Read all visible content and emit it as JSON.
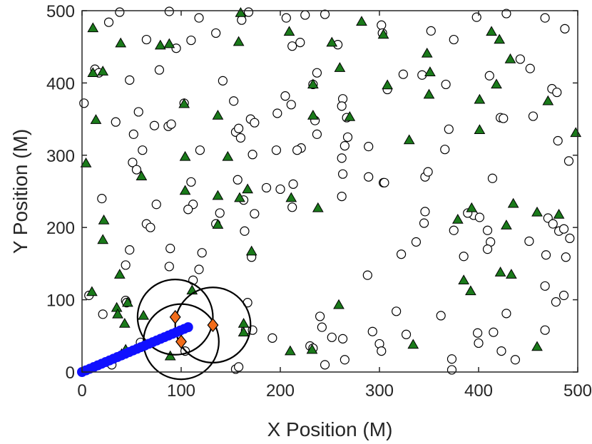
{
  "chart_data": {
    "type": "scatter",
    "xlabel": "X Position (M)",
    "ylabel": "Y Position (M)",
    "xlim": [
      0,
      500
    ],
    "ylim": [
      0,
      500
    ],
    "x_ticks": [
      0,
      100,
      200,
      300,
      400,
      500
    ],
    "y_ticks": [
      0,
      100,
      200,
      300,
      400,
      500
    ],
    "grid": false,
    "colors": {
      "triangle_fill": "#1a7a1a",
      "diamond_fill": "#f26c1a",
      "path_color": "#1010ff",
      "axis_color": "#262626"
    },
    "series": [
      {
        "marker": "open-circle",
        "points": [
          [
            38,
            498
          ],
          [
            88,
            499
          ],
          [
            168,
            498
          ],
          [
            206,
            490
          ],
          [
            225,
            494
          ],
          [
            245,
            495
          ],
          [
            302,
            480
          ],
          [
            303,
            469
          ],
          [
            352,
            472
          ],
          [
            375,
            460
          ],
          [
            398,
            491
          ],
          [
            428,
            496
          ],
          [
            467,
            490
          ],
          [
            487,
            475
          ],
          [
            27,
            484
          ],
          [
            65,
            460
          ],
          [
            95,
            448
          ],
          [
            110,
            459
          ],
          [
            118,
            490
          ],
          [
            135,
            469
          ],
          [
            161,
            487
          ],
          [
            212,
            451
          ],
          [
            220,
            456
          ],
          [
            258,
            453
          ],
          [
            13,
            419
          ],
          [
            17,
            414
          ],
          [
            48,
            404
          ],
          [
            78,
            418
          ],
          [
            142,
            403
          ],
          [
            237,
            414
          ],
          [
            233,
            398
          ],
          [
            308,
            391
          ],
          [
            324,
            412
          ],
          [
            343,
            411
          ],
          [
            367,
            398
          ],
          [
            411,
            410
          ],
          [
            442,
            433
          ],
          [
            452,
            420
          ],
          [
            474,
            392
          ],
          [
            479,
            387
          ],
          [
            2,
            372
          ],
          [
            57,
            360
          ],
          [
            103,
            372
          ],
          [
            153,
            375
          ],
          [
            205,
            382
          ],
          [
            211,
            370
          ],
          [
            197,
            358
          ],
          [
            263,
            378
          ],
          [
            262,
            368
          ],
          [
            267,
            352
          ],
          [
            170,
            350
          ],
          [
            174,
            345
          ],
          [
            235,
            348
          ],
          [
            422,
            352
          ],
          [
            425,
            351
          ],
          [
            455,
            354
          ],
          [
            34,
            346
          ],
          [
            52,
            329
          ],
          [
            73,
            341
          ],
          [
            87,
            340
          ],
          [
            90,
            343
          ],
          [
            155,
            332
          ],
          [
            158,
            337
          ],
          [
            160,
            324
          ],
          [
            237,
            329
          ],
          [
            268,
            325
          ],
          [
            370,
            336
          ],
          [
            480,
            320
          ],
          [
            61,
            307
          ],
          [
            119,
            307
          ],
          [
            172,
            301
          ],
          [
            196,
            307
          ],
          [
            221,
            310
          ],
          [
            217,
            307
          ],
          [
            262,
            296
          ],
          [
            265,
            313
          ],
          [
            289,
            312
          ],
          [
            366,
            308
          ],
          [
            51,
            290
          ],
          [
            55,
            280
          ],
          [
            20,
            240
          ],
          [
            75,
            232
          ],
          [
            112,
            232
          ],
          [
            110,
            263
          ],
          [
            186,
            255
          ],
          [
            200,
            253
          ],
          [
            213,
            260
          ],
          [
            263,
            274
          ],
          [
            262,
            243
          ],
          [
            289,
            270
          ],
          [
            304,
            262
          ],
          [
            305,
            262
          ],
          [
            346,
            270
          ],
          [
            349,
            277
          ],
          [
            414,
            268
          ],
          [
            491,
            292
          ],
          [
            65,
            205
          ],
          [
            69,
            200
          ],
          [
            107,
            225
          ],
          [
            135,
            205
          ],
          [
            139,
            220
          ],
          [
            164,
            195
          ],
          [
            157,
            266
          ],
          [
            174,
            219
          ],
          [
            163,
            238
          ],
          [
            212,
            228
          ],
          [
            346,
            222
          ],
          [
            345,
            206
          ],
          [
            337,
            180
          ],
          [
            322,
            163
          ],
          [
            375,
            196
          ],
          [
            395,
            217
          ],
          [
            401,
            214
          ],
          [
            409,
            196
          ],
          [
            412,
            180
          ],
          [
            409,
            170
          ],
          [
            451,
            181
          ],
          [
            470,
            213
          ],
          [
            475,
            205
          ],
          [
            481,
            195
          ],
          [
            486,
            198
          ],
          [
            468,
            162
          ],
          [
            492,
            185
          ],
          [
            488,
            159
          ],
          [
            48,
            169
          ],
          [
            89,
            171
          ],
          [
            121,
            165
          ],
          [
            118,
            142
          ],
          [
            112,
            127
          ],
          [
            88,
            146
          ],
          [
            44,
            148
          ],
          [
            44,
            99
          ],
          [
            45,
            96
          ],
          [
            59,
            41
          ],
          [
            7,
            106
          ],
          [
            21,
            80
          ],
          [
            26,
            14
          ],
          [
            30,
            10
          ],
          [
            40,
            23
          ],
          [
            104,
            29
          ],
          [
            167,
            96
          ],
          [
            171,
            159
          ],
          [
            165,
            58
          ],
          [
            172,
            58
          ],
          [
            192,
            47
          ],
          [
            230,
            36
          ],
          [
            233,
            33
          ],
          [
            240,
            77
          ],
          [
            242,
            62
          ],
          [
            245,
            10
          ],
          [
            252,
            48
          ],
          [
            263,
            46
          ],
          [
            265,
            17
          ],
          [
            288,
            134
          ],
          [
            293,
            56
          ],
          [
            300,
            39
          ],
          [
            302,
            29
          ],
          [
            317,
            84
          ],
          [
            327,
            52
          ],
          [
            362,
            78
          ],
          [
            373,
            18
          ],
          [
            373,
            3
          ],
          [
            385,
            160
          ],
          [
            389,
            220
          ],
          [
            399,
            54
          ],
          [
            400,
            40
          ],
          [
            415,
            55
          ],
          [
            423,
            29
          ],
          [
            428,
            81
          ],
          [
            437,
            17
          ],
          [
            467,
            119
          ],
          [
            467,
            58
          ],
          [
            478,
            97
          ],
          [
            486,
            106
          ],
          [
            155,
            4
          ],
          [
            158,
            7
          ]
        ]
      },
      {
        "marker": "filled-triangle",
        "points": [
          [
            11,
            476
          ],
          [
            39,
            455
          ],
          [
            79,
            452
          ],
          [
            88,
            454
          ],
          [
            158,
            457
          ],
          [
            160,
            497
          ],
          [
            209,
            471
          ],
          [
            252,
            456
          ],
          [
            260,
            421
          ],
          [
            282,
            485
          ],
          [
            304,
            467
          ],
          [
            348,
            441
          ],
          [
            351,
            415
          ],
          [
            350,
            384
          ],
          [
            401,
            377
          ],
          [
            413,
            471
          ],
          [
            421,
            460
          ],
          [
            418,
            398
          ],
          [
            432,
            433
          ],
          [
            470,
            375
          ],
          [
            498,
            331
          ],
          [
            11,
            414
          ],
          [
            21,
            416
          ],
          [
            14,
            349
          ],
          [
            103,
            371
          ],
          [
            137,
            355
          ],
          [
            233,
            398
          ],
          [
            233,
            355
          ],
          [
            270,
            353
          ],
          [
            308,
            397
          ],
          [
            330,
            321
          ],
          [
            401,
            335
          ],
          [
            4,
            289
          ],
          [
            60,
            271
          ],
          [
            104,
            298
          ],
          [
            104,
            251
          ],
          [
            137,
            244
          ],
          [
            147,
            298
          ],
          [
            159,
            241
          ],
          [
            167,
            253
          ],
          [
            211,
            241
          ],
          [
            238,
            227
          ],
          [
            379,
            211
          ],
          [
            393,
            227
          ],
          [
            428,
            203
          ],
          [
            435,
            233
          ],
          [
            459,
            221
          ],
          [
            481,
            218
          ],
          [
            22,
            210
          ],
          [
            21,
            183
          ],
          [
            137,
            204
          ],
          [
            171,
            167
          ],
          [
            38,
            135
          ],
          [
            10,
            111
          ],
          [
            35,
            89
          ],
          [
            36,
            80
          ],
          [
            43,
            67
          ],
          [
            46,
            96
          ],
          [
            62,
            78
          ],
          [
            89,
            22
          ],
          [
            111,
            113
          ],
          [
            163,
            67
          ],
          [
            163,
            55
          ],
          [
            210,
            29
          ],
          [
            232,
            31
          ],
          [
            259,
            93
          ],
          [
            334,
            38
          ],
          [
            385,
            127
          ],
          [
            392,
            112
          ],
          [
            422,
            138
          ],
          [
            433,
            135
          ],
          [
            459,
            35
          ],
          [
            40,
            25
          ],
          [
            44,
            31
          ]
        ]
      },
      {
        "marker": "filled-diamond",
        "points": [
          [
            94,
            76
          ],
          [
            132,
            65
          ],
          [
            100,
            42
          ]
        ]
      }
    ],
    "coverage_circles": [
      {
        "cx": 94,
        "cy": 76,
        "r": 38
      },
      {
        "cx": 132,
        "cy": 65,
        "r": 38
      },
      {
        "cx": 100,
        "cy": 42,
        "r": 38
      }
    ],
    "path": {
      "start": [
        0,
        0
      ],
      "end": [
        107,
        62
      ],
      "count": 28
    }
  }
}
